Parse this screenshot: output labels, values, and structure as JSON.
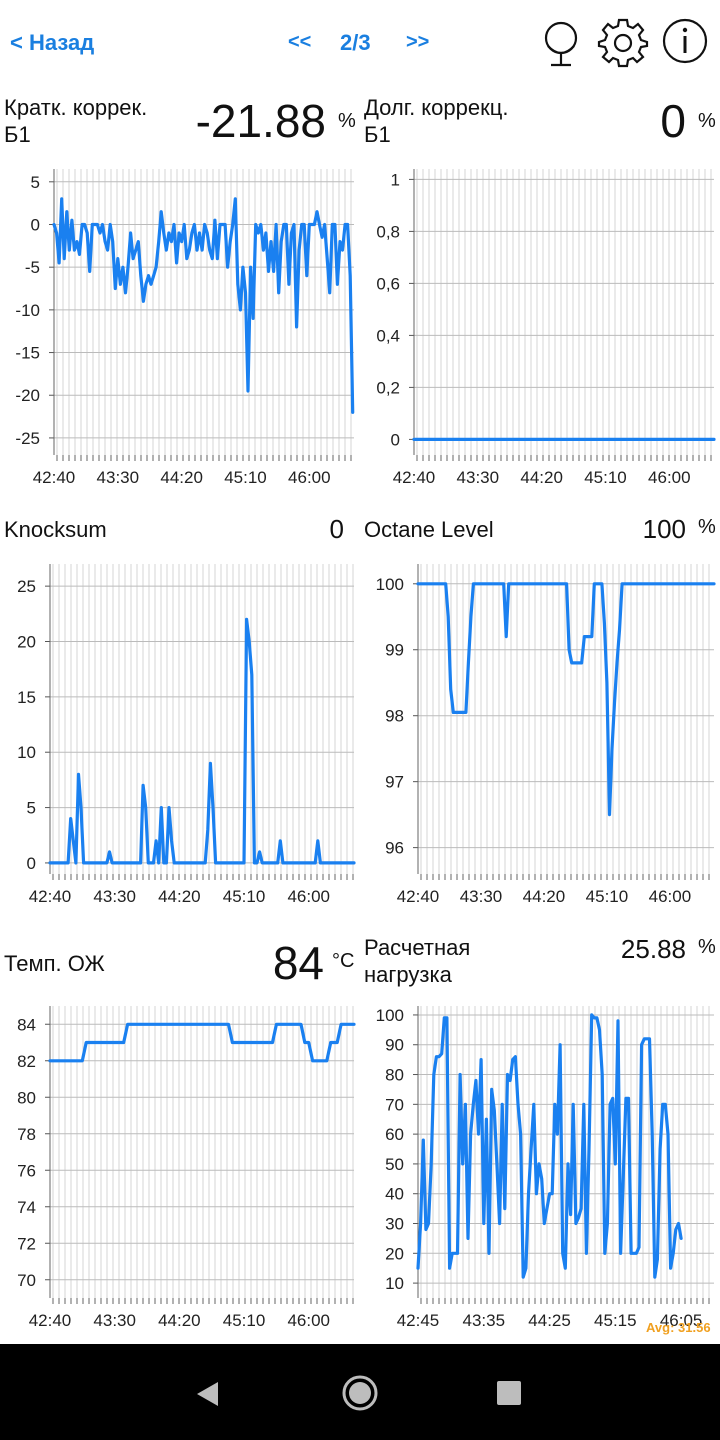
{
  "header": {
    "back_label": "< Назад",
    "prev_label": "<<",
    "page_indicator": "2/3",
    "next_label": ">>"
  },
  "colors": {
    "accent": "#1a7fe0",
    "series": "#1a80f0",
    "grid": "#cccccc"
  },
  "panels": [
    {
      "title": "Кратк. коррек.\nБ1",
      "value": "-21.88",
      "unit": "%"
    },
    {
      "title": "Долг. коррекц.\nБ1",
      "value": "0",
      "unit": "%"
    },
    {
      "title": "Knocksum",
      "value": "0",
      "unit": ""
    },
    {
      "title": "Octane Level",
      "value": "100",
      "unit": "%"
    },
    {
      "title": "Темп. ОЖ",
      "value": "84",
      "unit": "°C"
    },
    {
      "title": "Расчетная\nнагрузка",
      "value": "25.88",
      "unit": "%"
    }
  ],
  "watermark": "Avg: 31.56",
  "chart_data": [
    {
      "type": "line",
      "ylim": [
        -27,
        6.5
      ],
      "yticks": [
        "5",
        "0",
        "-5",
        "-10",
        "-15",
        "-20",
        "-25"
      ],
      "ytick_values": [
        5,
        0,
        -5,
        -10,
        -15,
        -20,
        -25
      ],
      "xticks": [
        "42:40",
        "43:30",
        "44:20",
        "45:10",
        "46:00"
      ],
      "xtick_pos": [
        0,
        50,
        100,
        150,
        200
      ],
      "xmax": 235,
      "points": [
        [
          0,
          0
        ],
        [
          2,
          -1
        ],
        [
          4,
          -4.5
        ],
        [
          6,
          3
        ],
        [
          8,
          -4
        ],
        [
          10,
          1.5
        ],
        [
          12,
          -3
        ],
        [
          14,
          0.5
        ],
        [
          16,
          -3
        ],
        [
          18,
          -2
        ],
        [
          20,
          -3.5
        ],
        [
          22,
          0
        ],
        [
          24,
          0
        ],
        [
          26,
          -1
        ],
        [
          28,
          -5.5
        ],
        [
          30,
          0
        ],
        [
          32,
          0
        ],
        [
          34,
          0
        ],
        [
          36,
          -1
        ],
        [
          38,
          0
        ],
        [
          40,
          -2
        ],
        [
          42,
          -3
        ],
        [
          44,
          0
        ],
        [
          46,
          -2
        ],
        [
          48,
          -7.5
        ],
        [
          50,
          -4
        ],
        [
          52,
          -7
        ],
        [
          54,
          -5
        ],
        [
          56,
          -8
        ],
        [
          58,
          -5
        ],
        [
          60,
          -1
        ],
        [
          62,
          -4
        ],
        [
          64,
          -3
        ],
        [
          66,
          -2
        ],
        [
          68,
          -6
        ],
        [
          70,
          -9
        ],
        [
          72,
          -7
        ],
        [
          74,
          -6
        ],
        [
          76,
          -7
        ],
        [
          78,
          -6
        ],
        [
          80,
          -5
        ],
        [
          82,
          -2
        ],
        [
          84,
          1.5
        ],
        [
          86,
          -1
        ],
        [
          88,
          -3
        ],
        [
          90,
          -1
        ],
        [
          92,
          -2
        ],
        [
          94,
          0
        ],
        [
          96,
          -4.5
        ],
        [
          98,
          -1
        ],
        [
          100,
          -2
        ],
        [
          102,
          0
        ],
        [
          104,
          -4
        ],
        [
          106,
          -3
        ],
        [
          108,
          -1
        ],
        [
          110,
          0
        ],
        [
          112,
          -3
        ],
        [
          114,
          -1
        ],
        [
          116,
          -3
        ],
        [
          118,
          0
        ],
        [
          120,
          -1
        ],
        [
          122,
          -3
        ],
        [
          124,
          -4
        ],
        [
          126,
          0.5
        ],
        [
          128,
          -4
        ],
        [
          130,
          0
        ],
        [
          132,
          0
        ],
        [
          134,
          0
        ],
        [
          136,
          -5
        ],
        [
          138,
          -2
        ],
        [
          140,
          0
        ],
        [
          142,
          3
        ],
        [
          144,
          -7
        ],
        [
          146,
          -10
        ],
        [
          148,
          -5
        ],
        [
          150,
          -8
        ],
        [
          152,
          -19.5
        ],
        [
          154,
          -5
        ],
        [
          156,
          -11
        ],
        [
          158,
          0
        ],
        [
          160,
          -1
        ],
        [
          162,
          0
        ],
        [
          164,
          -3
        ],
        [
          166,
          -1
        ],
        [
          168,
          -5.5
        ],
        [
          170,
          -2
        ],
        [
          172,
          -5.5
        ],
        [
          174,
          0
        ],
        [
          176,
          -8
        ],
        [
          178,
          -2
        ],
        [
          180,
          0
        ],
        [
          182,
          0
        ],
        [
          184,
          -7
        ],
        [
          186,
          -1
        ],
        [
          188,
          0
        ],
        [
          190,
          -12
        ],
        [
          192,
          -3
        ],
        [
          194,
          0
        ],
        [
          196,
          0
        ],
        [
          198,
          -6
        ],
        [
          200,
          0
        ],
        [
          202,
          0
        ],
        [
          204,
          0
        ],
        [
          206,
          1.5
        ],
        [
          208,
          0
        ],
        [
          210,
          -1.5
        ],
        [
          212,
          0
        ],
        [
          214,
          -4
        ],
        [
          216,
          -8
        ],
        [
          218,
          0
        ],
        [
          220,
          0
        ],
        [
          222,
          -7
        ],
        [
          224,
          -2
        ],
        [
          226,
          -3
        ],
        [
          228,
          0
        ],
        [
          230,
          0
        ],
        [
          232,
          -6
        ],
        [
          234,
          -22
        ]
      ]
    },
    {
      "type": "line",
      "ylim": [
        -0.06,
        1.04
      ],
      "yticks": [
        "1",
        "0,8",
        "0,6",
        "0,4",
        "0,2",
        "0"
      ],
      "ytick_values": [
        1,
        0.8,
        0.6,
        0.4,
        0.2,
        0
      ],
      "xticks": [
        "42:40",
        "43:30",
        "44:20",
        "45:10",
        "46:00"
      ],
      "xtick_pos": [
        0,
        50,
        100,
        150,
        200
      ],
      "xmax": 235,
      "points": [
        [
          0,
          0
        ],
        [
          235,
          0
        ]
      ]
    },
    {
      "type": "line",
      "ylim": [
        -1,
        27
      ],
      "yticks": [
        "25",
        "20",
        "15",
        "10",
        "5",
        "0"
      ],
      "ytick_values": [
        25,
        20,
        15,
        10,
        5,
        0
      ],
      "xticks": [
        "42:40",
        "43:30",
        "44:20",
        "45:10",
        "46:00"
      ],
      "xtick_pos": [
        0,
        50,
        100,
        150,
        200
      ],
      "xmax": 235,
      "points": [
        [
          0,
          0
        ],
        [
          14,
          0
        ],
        [
          16,
          4
        ],
        [
          18,
          2
        ],
        [
          20,
          0
        ],
        [
          22,
          8
        ],
        [
          24,
          5
        ],
        [
          26,
          0
        ],
        [
          44,
          0
        ],
        [
          46,
          1
        ],
        [
          48,
          0
        ],
        [
          70,
          0
        ],
        [
          72,
          7
        ],
        [
          74,
          5
        ],
        [
          76,
          0
        ],
        [
          80,
          0
        ],
        [
          82,
          2
        ],
        [
          84,
          0
        ],
        [
          86,
          5
        ],
        [
          88,
          0
        ],
        [
          90,
          0
        ],
        [
          92,
          5
        ],
        [
          94,
          2
        ],
        [
          96,
          0
        ],
        [
          120,
          0
        ],
        [
          122,
          3
        ],
        [
          124,
          9
        ],
        [
          126,
          5
        ],
        [
          128,
          0
        ],
        [
          150,
          0
        ],
        [
          152,
          22
        ],
        [
          154,
          20
        ],
        [
          156,
          17
        ],
        [
          158,
          0
        ],
        [
          160,
          0
        ],
        [
          162,
          1
        ],
        [
          164,
          0
        ],
        [
          176,
          0
        ],
        [
          178,
          2
        ],
        [
          180,
          0
        ],
        [
          205,
          0
        ],
        [
          207,
          2
        ],
        [
          209,
          0
        ],
        [
          235,
          0
        ]
      ]
    },
    {
      "type": "line",
      "ylim": [
        95.6,
        100.3
      ],
      "yticks": [
        "100",
        "99",
        "98",
        "97",
        "96"
      ],
      "ytick_values": [
        100,
        99,
        98,
        97,
        96
      ],
      "xticks": [
        "42:40",
        "43:30",
        "44:20",
        "45:10",
        "46:00"
      ],
      "xtick_pos": [
        0,
        50,
        100,
        150,
        200
      ],
      "xmax": 235,
      "points": [
        [
          0,
          100
        ],
        [
          22,
          100
        ],
        [
          24,
          99.5
        ],
        [
          26,
          98.4
        ],
        [
          28,
          98.05
        ],
        [
          38,
          98.05
        ],
        [
          40,
          98.8
        ],
        [
          42,
          99.5
        ],
        [
          44,
          100
        ],
        [
          68,
          100
        ],
        [
          70,
          99.2
        ],
        [
          72,
          100
        ],
        [
          118,
          100
        ],
        [
          120,
          99
        ],
        [
          122,
          98.8
        ],
        [
          130,
          98.8
        ],
        [
          132,
          99.2
        ],
        [
          138,
          99.2
        ],
        [
          140,
          100
        ],
        [
          146,
          100
        ],
        [
          148,
          99.4
        ],
        [
          150,
          98.5
        ],
        [
          152,
          96.5
        ],
        [
          154,
          97.5
        ],
        [
          156,
          98.2
        ],
        [
          158,
          98.8
        ],
        [
          160,
          99.3
        ],
        [
          162,
          100
        ],
        [
          235,
          100
        ]
      ]
    },
    {
      "type": "line",
      "ylim": [
        69,
        85
      ],
      "yticks": [
        "84",
        "82",
        "80",
        "78",
        "76",
        "74",
        "72",
        "70"
      ],
      "ytick_values": [
        84,
        82,
        80,
        78,
        76,
        74,
        72,
        70
      ],
      "xticks": [
        "42:40",
        "43:30",
        "44:20",
        "45:10",
        "46:00"
      ],
      "xtick_pos": [
        0,
        50,
        100,
        150,
        200
      ],
      "xmax": 235,
      "points": [
        [
          0,
          82
        ],
        [
          25,
          82
        ],
        [
          28,
          83
        ],
        [
          57,
          83
        ],
        [
          60,
          84
        ],
        [
          138,
          84
        ],
        [
          141,
          83
        ],
        [
          172,
          83
        ],
        [
          175,
          84
        ],
        [
          194,
          84
        ],
        [
          197,
          83
        ],
        [
          200,
          83
        ],
        [
          203,
          82
        ],
        [
          214,
          82
        ],
        [
          217,
          83
        ],
        [
          222,
          83
        ],
        [
          225,
          84
        ],
        [
          235,
          84
        ]
      ]
    },
    {
      "type": "line",
      "ylim": [
        5,
        103
      ],
      "yticks": [
        "100",
        "90",
        "80",
        "70",
        "60",
        "50",
        "40",
        "30",
        "20",
        "10"
      ],
      "ytick_values": [
        100,
        90,
        80,
        70,
        60,
        50,
        40,
        30,
        20,
        10
      ],
      "xticks": [
        "42:45",
        "43:35",
        "44:25",
        "45:15",
        "46:05"
      ],
      "xtick_pos": [
        0,
        50,
        100,
        150,
        200
      ],
      "xmax": 225,
      "points": [
        [
          0,
          15
        ],
        [
          2,
          30
        ],
        [
          4,
          58
        ],
        [
          6,
          28
        ],
        [
          8,
          30
        ],
        [
          10,
          50
        ],
        [
          12,
          80
        ],
        [
          14,
          86
        ],
        [
          16,
          86
        ],
        [
          18,
          87
        ],
        [
          20,
          99
        ],
        [
          22,
          99
        ],
        [
          24,
          15
        ],
        [
          26,
          20
        ],
        [
          28,
          20
        ],
        [
          30,
          20
        ],
        [
          32,
          80
        ],
        [
          34,
          50
        ],
        [
          36,
          70
        ],
        [
          38,
          25
        ],
        [
          40,
          60
        ],
        [
          42,
          70
        ],
        [
          44,
          78
        ],
        [
          46,
          60
        ],
        [
          48,
          85
        ],
        [
          50,
          30
        ],
        [
          52,
          65
        ],
        [
          54,
          20
        ],
        [
          56,
          75
        ],
        [
          58,
          68
        ],
        [
          60,
          50
        ],
        [
          62,
          30
        ],
        [
          64,
          70
        ],
        [
          66,
          35
        ],
        [
          68,
          80
        ],
        [
          70,
          78
        ],
        [
          72,
          85
        ],
        [
          74,
          86
        ],
        [
          76,
          70
        ],
        [
          78,
          60
        ],
        [
          80,
          12
        ],
        [
          82,
          15
        ],
        [
          84,
          40
        ],
        [
          86,
          55
        ],
        [
          88,
          70
        ],
        [
          90,
          40
        ],
        [
          92,
          50
        ],
        [
          94,
          45
        ],
        [
          96,
          30
        ],
        [
          98,
          35
        ],
        [
          100,
          40
        ],
        [
          102,
          40
        ],
        [
          104,
          70
        ],
        [
          106,
          60
        ],
        [
          108,
          90
        ],
        [
          110,
          20
        ],
        [
          112,
          15
        ],
        [
          114,
          50
        ],
        [
          116,
          33
        ],
        [
          118,
          70
        ],
        [
          120,
          30
        ],
        [
          122,
          32
        ],
        [
          124,
          35
        ],
        [
          126,
          70
        ],
        [
          128,
          20
        ],
        [
          130,
          55
        ],
        [
          132,
          100
        ],
        [
          134,
          99
        ],
        [
          136,
          99
        ],
        [
          138,
          95
        ],
        [
          140,
          80
        ],
        [
          142,
          20
        ],
        [
          144,
          30
        ],
        [
          146,
          70
        ],
        [
          148,
          72
        ],
        [
          150,
          50
        ],
        [
          152,
          98
        ],
        [
          154,
          20
        ],
        [
          156,
          45
        ],
        [
          158,
          72
        ],
        [
          160,
          72
        ],
        [
          162,
          20
        ],
        [
          164,
          20
        ],
        [
          166,
          20
        ],
        [
          168,
          22
        ],
        [
          170,
          90
        ],
        [
          172,
          92
        ],
        [
          174,
          92
        ],
        [
          176,
          92
        ],
        [
          178,
          60
        ],
        [
          180,
          12
        ],
        [
          182,
          18
        ],
        [
          184,
          55
        ],
        [
          186,
          70
        ],
        [
          188,
          70
        ],
        [
          190,
          60
        ],
        [
          192,
          15
        ],
        [
          194,
          20
        ],
        [
          196,
          28
        ],
        [
          198,
          30
        ],
        [
          200,
          25
        ]
      ]
    }
  ]
}
